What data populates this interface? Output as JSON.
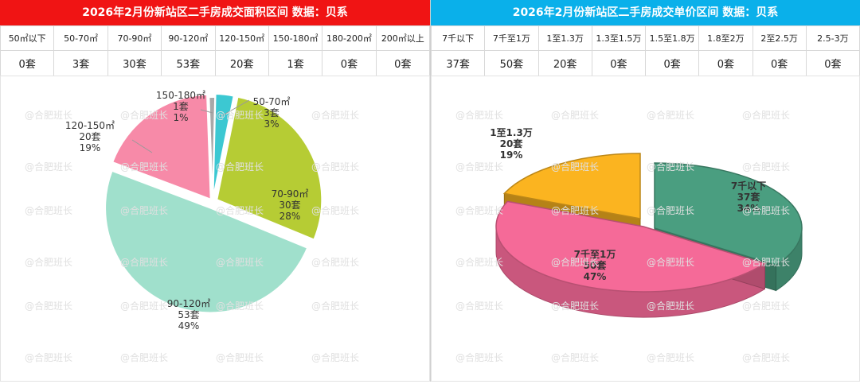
{
  "left": {
    "title": "2026年2月份新站区二手房成交面积区间 数据：贝系",
    "headers": [
      "50㎡以下",
      "50-70㎡",
      "70-90㎡",
      "90-120㎡",
      "120-150㎡",
      "150-180㎡",
      "180-200㎡",
      "200㎡以上"
    ],
    "values": [
      "0套",
      "3套",
      "30套",
      "53套",
      "20套",
      "1套",
      "0套",
      "0套"
    ]
  },
  "right": {
    "title": "2026年2月份新站区二手房成交单价区间 数据：贝系",
    "headers": [
      "7千以下",
      "7千至1万",
      "1至1.3万",
      "1.3至1.5万",
      "1.5至1.8万",
      "1.8至2万",
      "2至2.5万",
      "2.5-3万"
    ],
    "values": [
      "37套",
      "50套",
      "20套",
      "0套",
      "0套",
      "0套",
      "0套",
      "0套"
    ]
  },
  "watermark": "@合肥班长",
  "chart_data": [
    {
      "type": "pie",
      "categories": [
        "150-180㎡",
        "50-70㎡",
        "70-90㎡",
        "90-120㎡",
        "120-150㎡"
      ],
      "values": [
        1,
        3,
        30,
        53,
        20
      ],
      "labels": [
        {
          "name": "150-180㎡",
          "count": "1套",
          "pct": "1%"
        },
        {
          "name": "50-70㎡",
          "count": "3套",
          "pct": "3%"
        },
        {
          "name": "70-90㎡",
          "count": "30套",
          "pct": "28%"
        },
        {
          "name": "90-120㎡",
          "count": "53套",
          "pct": "49%"
        },
        {
          "name": "120-150㎡",
          "count": "20套",
          "pct": "19%"
        }
      ],
      "colors": [
        "#a8a8a8",
        "#3cc8d2",
        "#b6cc34",
        "#a0e0cc",
        "#f78aa8"
      ]
    },
    {
      "type": "pie",
      "categories": [
        "7千以下",
        "7千至1万",
        "1至1.3万"
      ],
      "values": [
        37,
        50,
        20
      ],
      "labels": [
        {
          "name": "7千以下",
          "count": "37套",
          "pct": "34%"
        },
        {
          "name": "7千至1万",
          "count": "50套",
          "pct": "47%"
        },
        {
          "name": "1至1.3万",
          "count": "20套",
          "pct": "19%"
        }
      ],
      "colors": [
        "#4a9e80",
        "#f56a98",
        "#fbb420"
      ]
    }
  ]
}
